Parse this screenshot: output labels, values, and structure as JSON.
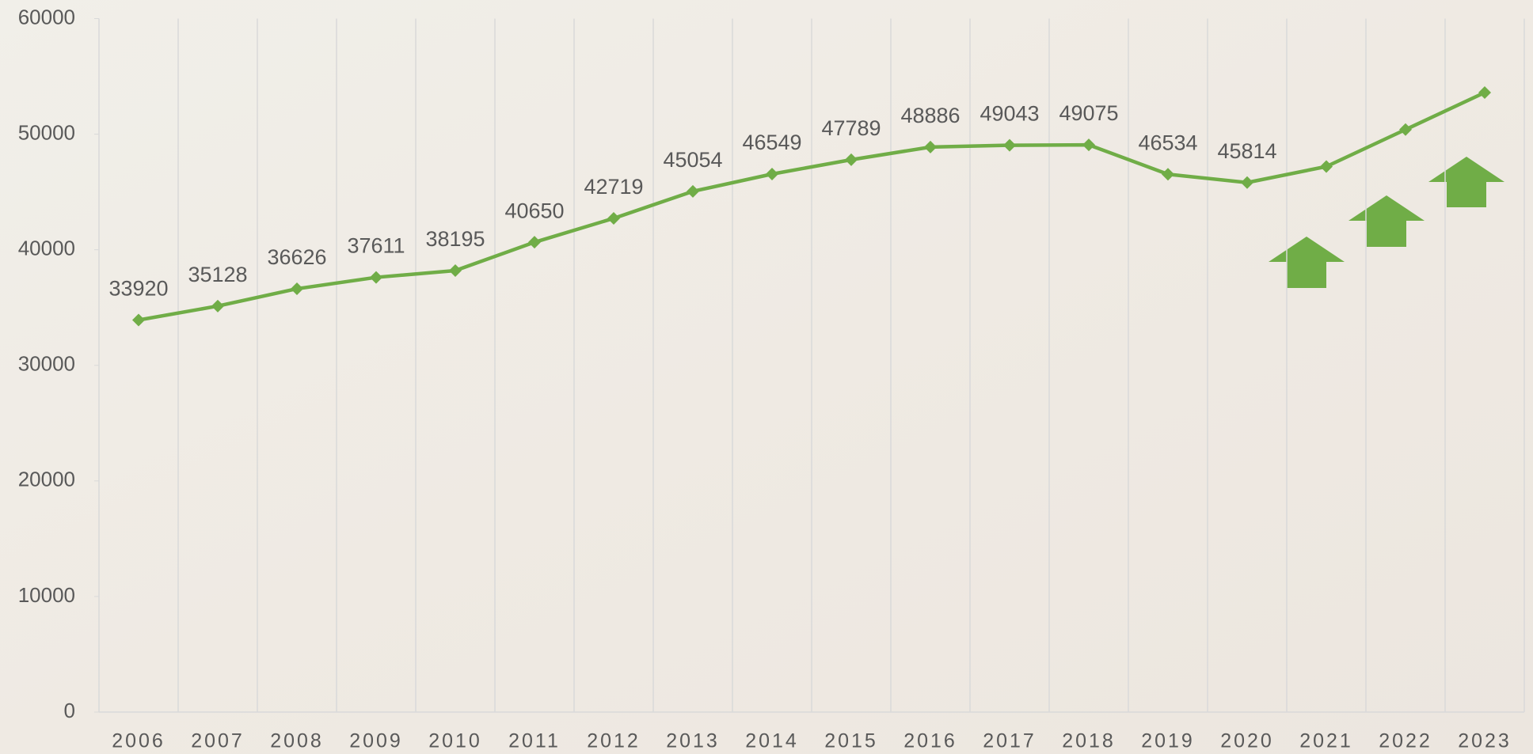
{
  "chart_data": {
    "type": "line",
    "categories": [
      "2006",
      "2007",
      "2008",
      "2009",
      "2010",
      "2011",
      "2012",
      "2013",
      "2014",
      "2015",
      "2016",
      "2017",
      "2018",
      "2019",
      "2020",
      "2021",
      "2022",
      "2023"
    ],
    "series": [
      {
        "color": "#70ad47",
        "values": [
          33920,
          35128,
          36626,
          37611,
          38195,
          40650,
          42719,
          45054,
          46549,
          47789,
          48886,
          49043,
          49075,
          46534,
          45814,
          47200,
          50400,
          53600
        ],
        "value_labels": [
          "33920",
          "35128",
          "36626",
          "37611",
          "38195",
          "40650",
          "42719",
          "45054",
          "46549",
          "47789",
          "48886",
          "49043",
          "49075",
          "46534",
          "45814",
          null,
          null,
          null
        ]
      }
    ],
    "ylim": [
      0,
      60000
    ],
    "yticks": [
      0,
      10000,
      20000,
      30000,
      40000,
      50000,
      60000
    ],
    "grid": true
  }
}
